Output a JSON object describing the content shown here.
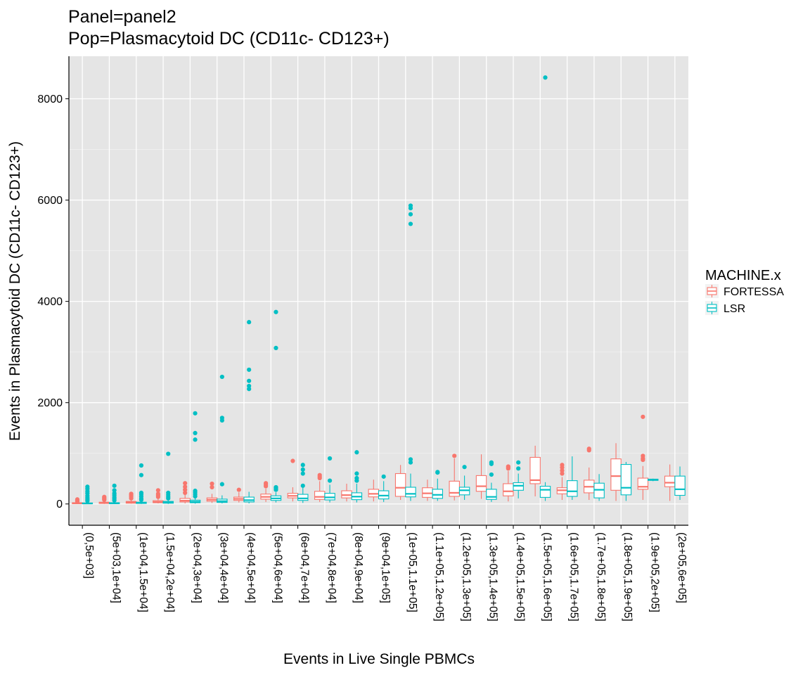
{
  "title": {
    "line1": "Panel=panel2",
    "line2": "Pop=Plasmacytoid DC (CD11c- CD123+)"
  },
  "chart_data": {
    "type": "boxplot",
    "xlabel": "Events in Live Single PBMCs",
    "ylabel": "Events in Plasmacytoid DC (CD11c- CD123+)",
    "ylim": [
      -420,
      8840
    ],
    "y_ticks": [
      0,
      2000,
      4000,
      6000,
      8000
    ],
    "grid": true,
    "legend": {
      "title": "MACHINE.x",
      "position": "right",
      "entries": [
        {
          "name": "FORTESSA",
          "color": "#F8766D"
        },
        {
          "name": "LSR",
          "color": "#00BFC4"
        }
      ]
    },
    "categories": [
      "(0,5e+03]",
      "(5e+03,1e+04]",
      "(1e+04,1.5e+04]",
      "(1.5e+04,2e+04]",
      "(2e+04,3e+04]",
      "(3e+04,4e+04]",
      "(4e+04,5e+04]",
      "(5e+04,6e+04]",
      "(6e+04,7e+04]",
      "(7e+04,8e+04]",
      "(8e+04,9e+04]",
      "(9e+04,1e+05]",
      "(1e+05,1.1e+05]",
      "(1.1e+05,1.2e+05]",
      "(1.2e+05,1.3e+05]",
      "(1.3e+05,1.4e+05]",
      "(1.4e+05,1.5e+05]",
      "(1.5e+05,1.6e+05]",
      "(1.6e+05,1.7e+05]",
      "(1.7e+05,1.8e+05]",
      "(1.8e+05,1.9e+05]",
      "(1.9e+05,2e+05]",
      "(2e+05,6e+05]"
    ],
    "series": [
      {
        "name": "FORTESSA",
        "color": "#F8766D",
        "boxes": [
          {
            "min": 0,
            "q1": 5,
            "median": 15,
            "q3": 25,
            "max": 40,
            "outliers": [
              50,
              60,
              75,
              90
            ]
          },
          {
            "min": 0,
            "q1": 10,
            "median": 20,
            "q3": 35,
            "max": 60,
            "outliers": [
              80,
              100,
              120,
              140
            ]
          },
          {
            "min": 5,
            "q1": 15,
            "median": 30,
            "q3": 50,
            "max": 90,
            "outliers": [
              110,
              140,
              170,
              200
            ]
          },
          {
            "min": 10,
            "q1": 25,
            "median": 40,
            "q3": 65,
            "max": 110,
            "outliers": [
              140,
              170,
              200,
              270
            ]
          },
          {
            "min": 10,
            "q1": 40,
            "median": 65,
            "q3": 110,
            "max": 180,
            "outliers": [
              220,
              280,
              340,
              410
            ]
          },
          {
            "min": 20,
            "q1": 55,
            "median": 85,
            "q3": 120,
            "max": 200,
            "outliers": [
              330,
              400
            ]
          },
          {
            "min": 30,
            "q1": 70,
            "median": 100,
            "q3": 135,
            "max": 230,
            "outliers": [
              280
            ]
          },
          {
            "min": 40,
            "q1": 95,
            "median": 140,
            "q3": 195,
            "max": 300,
            "outliers": [
              350,
              380,
              410
            ]
          },
          {
            "min": 50,
            "q1": 120,
            "median": 160,
            "q3": 210,
            "max": 330,
            "outliers": [
              850
            ]
          },
          {
            "min": 40,
            "q1": 90,
            "median": 140,
            "q3": 250,
            "max": 450,
            "outliers": [
              510,
              540,
              570
            ]
          },
          {
            "min": 50,
            "q1": 120,
            "median": 175,
            "q3": 260,
            "max": 400,
            "outliers": []
          },
          {
            "min": 50,
            "q1": 140,
            "median": 200,
            "q3": 290,
            "max": 480,
            "outliers": []
          },
          {
            "min": 80,
            "q1": 150,
            "median": 320,
            "q3": 600,
            "max": 770,
            "outliers": []
          },
          {
            "min": 60,
            "q1": 130,
            "median": 210,
            "q3": 320,
            "max": 480,
            "outliers": []
          },
          {
            "min": 70,
            "q1": 150,
            "median": 220,
            "q3": 450,
            "max": 900,
            "outliers": [
              950
            ]
          },
          {
            "min": 100,
            "q1": 250,
            "median": 350,
            "q3": 560,
            "max": 980,
            "outliers": []
          },
          {
            "min": 50,
            "q1": 160,
            "median": 250,
            "q3": 400,
            "max": 650,
            "outliers": [
              700,
              720,
              740
            ]
          },
          {
            "min": 150,
            "q1": 400,
            "median": 470,
            "q3": 920,
            "max": 1150,
            "outliers": []
          },
          {
            "min": 80,
            "q1": 200,
            "median": 270,
            "q3": 320,
            "max": 530,
            "outliers": [
              600,
              660,
              720,
              770
            ]
          },
          {
            "min": 80,
            "q1": 220,
            "median": 340,
            "q3": 470,
            "max": 720,
            "outliers": [
              1060,
              1090
            ]
          },
          {
            "min": 60,
            "q1": 270,
            "median": 550,
            "q3": 890,
            "max": 1200,
            "outliers": []
          },
          {
            "min": 80,
            "q1": 290,
            "median": 340,
            "q3": 510,
            "max": 750,
            "outliers": [
              870,
              900,
              950,
              1720
            ]
          },
          {
            "min": 60,
            "q1": 340,
            "median": 420,
            "q3": 550,
            "max": 780,
            "outliers": []
          }
        ]
      },
      {
        "name": "LSR",
        "color": "#00BFC4",
        "boxes": [
          {
            "min": 0,
            "q1": 5,
            "median": 10,
            "q3": 20,
            "max": 40,
            "outliers": [
              60,
              90,
              120,
              160,
              210,
              250,
              300,
              340
            ]
          },
          {
            "min": 0,
            "q1": 5,
            "median": 15,
            "q3": 25,
            "max": 50,
            "outliers": [
              70,
              100,
              130,
              170,
              210,
              270,
              360
            ]
          },
          {
            "min": 0,
            "q1": 10,
            "median": 20,
            "q3": 35,
            "max": 60,
            "outliers": [
              80,
              110,
              150,
              190,
              220,
              570,
              760
            ]
          },
          {
            "min": 0,
            "q1": 15,
            "median": 30,
            "q3": 50,
            "max": 80,
            "outliers": [
              110,
              140,
              180,
              220,
              990
            ]
          },
          {
            "min": 5,
            "q1": 25,
            "median": 45,
            "q3": 75,
            "max": 120,
            "outliers": [
              150,
              190,
              230,
              260,
              1270,
              1400,
              1790
            ]
          },
          {
            "min": 10,
            "q1": 30,
            "median": 55,
            "q3": 95,
            "max": 170,
            "outliers": [
              390,
              1650,
              1700,
              2510
            ]
          },
          {
            "min": 10,
            "q1": 40,
            "median": 75,
            "q3": 135,
            "max": 240,
            "outliers": [
              2270,
              2330,
              2430,
              2650,
              3590
            ]
          },
          {
            "min": 30,
            "q1": 70,
            "median": 110,
            "q3": 160,
            "max": 230,
            "outliers": [
              280,
              310,
              330,
              3080,
              3790
            ]
          },
          {
            "min": 20,
            "q1": 70,
            "median": 110,
            "q3": 190,
            "max": 330,
            "outliers": [
              360,
              600,
              680,
              770
            ]
          },
          {
            "min": 30,
            "q1": 80,
            "median": 130,
            "q3": 210,
            "max": 380,
            "outliers": [
              460,
              900
            ]
          },
          {
            "min": 30,
            "q1": 85,
            "median": 145,
            "q3": 220,
            "max": 400,
            "outliers": [
              460,
              510,
              600,
              1020
            ]
          },
          {
            "min": 40,
            "q1": 100,
            "median": 165,
            "q3": 260,
            "max": 450,
            "outliers": [
              540
            ]
          },
          {
            "min": 60,
            "q1": 140,
            "median": 200,
            "q3": 330,
            "max": 600,
            "outliers": [
              820,
              880,
              5530,
              5720,
              5840,
              5890
            ]
          },
          {
            "min": 60,
            "q1": 110,
            "median": 180,
            "q3": 290,
            "max": 500,
            "outliers": [
              620,
              630
            ]
          },
          {
            "min": 80,
            "q1": 180,
            "median": 270,
            "q3": 330,
            "max": 560,
            "outliers": [
              730
            ]
          },
          {
            "min": 40,
            "q1": 90,
            "median": 140,
            "q3": 290,
            "max": 420,
            "outliers": [
              580,
              790,
              820
            ]
          },
          {
            "min": 110,
            "q1": 270,
            "median": 360,
            "q3": 420,
            "max": 600,
            "outliers": [
              700,
              820
            ]
          },
          {
            "min": 60,
            "q1": 130,
            "median": 280,
            "q3": 350,
            "max": 430,
            "outliers": [
              8420
            ]
          },
          {
            "min": 80,
            "q1": 150,
            "median": 250,
            "q3": 460,
            "max": 940,
            "outliers": []
          },
          {
            "min": 60,
            "q1": 120,
            "median": 280,
            "q3": 410,
            "max": 590,
            "outliers": []
          },
          {
            "min": 60,
            "q1": 180,
            "median": 320,
            "q3": 780,
            "max": 830,
            "outliers": []
          },
          {
            "min": 450,
            "q1": 465,
            "median": 480,
            "q3": 490,
            "max": 500,
            "outliers": []
          },
          {
            "min": 80,
            "q1": 170,
            "median": 290,
            "q3": 550,
            "max": 740,
            "outliers": []
          }
        ]
      }
    ]
  }
}
